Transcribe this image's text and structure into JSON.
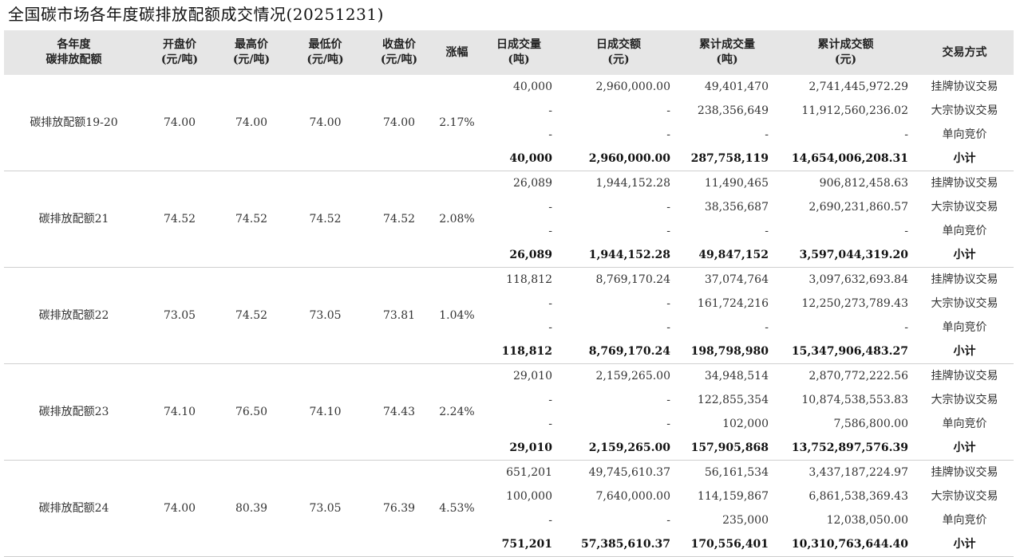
{
  "title": "全国碳市场各年度碳排放配额成交情况(20251231)",
  "headers": [
    [
      "各年度",
      "碳排放配额"
    ],
    [
      "开盘价",
      "(元/吨)"
    ],
    [
      "最高价",
      "(元/吨)"
    ],
    [
      "最低价",
      "(元/吨)"
    ],
    [
      "收盘价",
      "(元/吨)"
    ],
    [
      "涨幅"
    ],
    [
      "日成交量",
      "(吨)"
    ],
    [
      "日成交额",
      "(元)"
    ],
    [
      "累计成交量",
      "(吨)"
    ],
    [
      "累计成交额",
      "(元)"
    ],
    [
      "交易方式"
    ]
  ],
  "groups": [
    {
      "name": "碳排放配额19-20",
      "open": "74.00",
      "high": "74.00",
      "low": "74.00",
      "close": "74.00",
      "change": "2.17%",
      "rows": [
        {
          "daily_volume": "40,000",
          "daily_amount": "2,960,000.00",
          "cum_volume": "49,401,470",
          "cum_amount": "2,741,445,972.29",
          "method": "挂牌协议交易"
        },
        {
          "daily_volume": "-",
          "daily_amount": "-",
          "cum_volume": "238,356,649",
          "cum_amount": "11,912,560,236.02",
          "method": "大宗协议交易"
        },
        {
          "daily_volume": "-",
          "daily_amount": "-",
          "cum_volume": "-",
          "cum_amount": "-",
          "method": "单向竞价"
        },
        {
          "daily_volume": "40,000",
          "daily_amount": "2,960,000.00",
          "cum_volume": "287,758,119",
          "cum_amount": "14,654,006,208.31",
          "method": "小计"
        }
      ]
    },
    {
      "name": "碳排放配额21",
      "open": "74.52",
      "high": "74.52",
      "low": "74.52",
      "close": "74.52",
      "change": "2.08%",
      "rows": [
        {
          "daily_volume": "26,089",
          "daily_amount": "1,944,152.28",
          "cum_volume": "11,490,465",
          "cum_amount": "906,812,458.63",
          "method": "挂牌协议交易"
        },
        {
          "daily_volume": "-",
          "daily_amount": "-",
          "cum_volume": "38,356,687",
          "cum_amount": "2,690,231,860.57",
          "method": "大宗协议交易"
        },
        {
          "daily_volume": "-",
          "daily_amount": "-",
          "cum_volume": "-",
          "cum_amount": "-",
          "method": "单向竞价"
        },
        {
          "daily_volume": "26,089",
          "daily_amount": "1,944,152.28",
          "cum_volume": "49,847,152",
          "cum_amount": "3,597,044,319.20",
          "method": "小计"
        }
      ]
    },
    {
      "name": "碳排放配额22",
      "open": "73.05",
      "high": "74.52",
      "low": "73.05",
      "close": "73.81",
      "change": "1.04%",
      "rows": [
        {
          "daily_volume": "118,812",
          "daily_amount": "8,769,170.24",
          "cum_volume": "37,074,764",
          "cum_amount": "3,097,632,693.84",
          "method": "挂牌协议交易"
        },
        {
          "daily_volume": "-",
          "daily_amount": "-",
          "cum_volume": "161,724,216",
          "cum_amount": "12,250,273,789.43",
          "method": "大宗协议交易"
        },
        {
          "daily_volume": "-",
          "daily_amount": "-",
          "cum_volume": "-",
          "cum_amount": "-",
          "method": "单向竞价"
        },
        {
          "daily_volume": "118,812",
          "daily_amount": "8,769,170.24",
          "cum_volume": "198,798,980",
          "cum_amount": "15,347,906,483.27",
          "method": "小计"
        }
      ]
    },
    {
      "name": "碳排放配额23",
      "open": "74.10",
      "high": "76.50",
      "low": "74.10",
      "close": "74.43",
      "change": "2.24%",
      "rows": [
        {
          "daily_volume": "29,010",
          "daily_amount": "2,159,265.00",
          "cum_volume": "34,948,514",
          "cum_amount": "2,870,772,222.56",
          "method": "挂牌协议交易"
        },
        {
          "daily_volume": "-",
          "daily_amount": "-",
          "cum_volume": "122,855,354",
          "cum_amount": "10,874,538,553.83",
          "method": "大宗协议交易"
        },
        {
          "daily_volume": "-",
          "daily_amount": "-",
          "cum_volume": "102,000",
          "cum_amount": "7,586,800.00",
          "method": "单向竞价"
        },
        {
          "daily_volume": "29,010",
          "daily_amount": "2,159,265.00",
          "cum_volume": "157,905,868",
          "cum_amount": "13,752,897,576.39",
          "method": "小计"
        }
      ]
    },
    {
      "name": "碳排放配额24",
      "open": "74.00",
      "high": "80.39",
      "low": "73.05",
      "close": "76.39",
      "change": "4.53%",
      "rows": [
        {
          "daily_volume": "651,201",
          "daily_amount": "49,745,610.37",
          "cum_volume": "56,161,534",
          "cum_amount": "3,437,187,224.97",
          "method": "挂牌协议交易"
        },
        {
          "daily_volume": "100,000",
          "daily_amount": "7,640,000.00",
          "cum_volume": "114,159,867",
          "cum_amount": "6,861,538,369.43",
          "method": "大宗协议交易"
        },
        {
          "daily_volume": "-",
          "daily_amount": "-",
          "cum_volume": "235,000",
          "cum_amount": "12,038,050.00",
          "method": "单向竞价"
        },
        {
          "daily_volume": "751,201",
          "daily_amount": "57,385,610.37",
          "cum_volume": "170,556,401",
          "cum_amount": "10,310,763,644.40",
          "method": "小计"
        }
      ]
    }
  ]
}
